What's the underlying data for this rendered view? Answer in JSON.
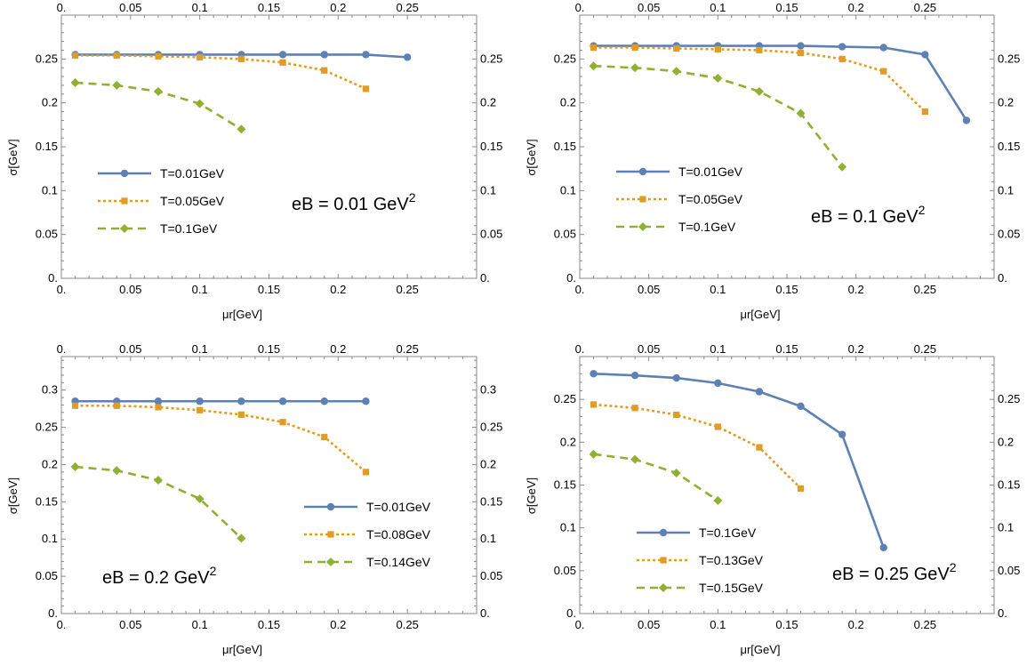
{
  "chart_data": [
    {
      "type": "line",
      "xlabel": "μr[GeV]",
      "ylabel": "σ[GeV]",
      "xlim": [
        0,
        0.3
      ],
      "ylim": [
        0,
        0.3
      ],
      "xticks": [
        "0.",
        "0.05",
        "0.1",
        "0.15",
        "0.2",
        "0.25"
      ],
      "yticks": [
        "0.",
        "0.05",
        "0.1",
        "0.15",
        "0.2",
        "0.25"
      ],
      "legend_position": "center-left",
      "annotation": {
        "text": "eB = 0.01 GeV",
        "sup": "2"
      },
      "series": [
        {
          "name": "T=0.01GeV",
          "color": "#5E81B5",
          "style": "solid",
          "marker": "circle",
          "x": [
            0.01,
            0.04,
            0.07,
            0.1,
            0.13,
            0.16,
            0.19,
            0.22,
            0.25
          ],
          "y": [
            0.255,
            0.255,
            0.255,
            0.255,
            0.255,
            0.255,
            0.255,
            0.255,
            0.252
          ]
        },
        {
          "name": "T=0.05GeV",
          "color": "#E19C24",
          "style": "dotted",
          "marker": "square",
          "x": [
            0.01,
            0.04,
            0.07,
            0.1,
            0.13,
            0.16,
            0.19,
            0.22
          ],
          "y": [
            0.254,
            0.254,
            0.253,
            0.252,
            0.25,
            0.246,
            0.237,
            0.216
          ]
        },
        {
          "name": "T=0.1GeV",
          "color": "#8FB032",
          "style": "dashed",
          "marker": "diamond",
          "x": [
            0.01,
            0.04,
            0.07,
            0.1,
            0.13
          ],
          "y": [
            0.223,
            0.22,
            0.213,
            0.199,
            0.17
          ]
        }
      ]
    },
    {
      "type": "line",
      "xlabel": "μr[GeV]",
      "ylabel": "σ[GeV]",
      "xlim": [
        0,
        0.3
      ],
      "ylim": [
        0,
        0.3
      ],
      "xticks": [
        "0.",
        "0.05",
        "0.1",
        "0.15",
        "0.2",
        "0.25"
      ],
      "yticks": [
        "0.",
        "0.05",
        "0.1",
        "0.15",
        "0.2",
        "0.25"
      ],
      "legend_position": "center-left",
      "annotation": {
        "text": "eB = 0.1 GeV",
        "sup": "2"
      },
      "series": [
        {
          "name": "T=0.01GeV",
          "color": "#5E81B5",
          "style": "solid",
          "marker": "circle",
          "x": [
            0.01,
            0.04,
            0.07,
            0.1,
            0.13,
            0.16,
            0.19,
            0.22,
            0.25,
            0.28
          ],
          "y": [
            0.265,
            0.265,
            0.265,
            0.265,
            0.265,
            0.265,
            0.264,
            0.263,
            0.255,
            0.18
          ]
        },
        {
          "name": "T=0.05GeV",
          "color": "#E19C24",
          "style": "dotted",
          "marker": "square",
          "x": [
            0.01,
            0.04,
            0.07,
            0.1,
            0.13,
            0.16,
            0.19,
            0.22,
            0.25
          ],
          "y": [
            0.263,
            0.263,
            0.262,
            0.261,
            0.26,
            0.257,
            0.25,
            0.236,
            0.19
          ]
        },
        {
          "name": "T=0.1GeV",
          "color": "#8FB032",
          "style": "dashed",
          "marker": "diamond",
          "x": [
            0.01,
            0.04,
            0.07,
            0.1,
            0.13,
            0.16,
            0.19
          ],
          "y": [
            0.242,
            0.24,
            0.236,
            0.228,
            0.213,
            0.188,
            0.127
          ]
        }
      ]
    },
    {
      "type": "line",
      "xlabel": "μr[GeV]",
      "ylabel": "σ[GeV]",
      "xlim": [
        0,
        0.3
      ],
      "ylim": [
        0,
        0.345
      ],
      "xticks": [
        "0.",
        "0.05",
        "0.1",
        "0.15",
        "0.2",
        "0.25"
      ],
      "yticks": [
        "0.",
        "0.05",
        "0.1",
        "0.15",
        "0.2",
        "0.25",
        "0.3"
      ],
      "legend_position": "center-right",
      "annotation": {
        "text": "eB = 0.2 GeV",
        "sup": "2"
      },
      "series": [
        {
          "name": "T=0.01GeV",
          "color": "#5E81B5",
          "style": "solid",
          "marker": "circle",
          "x": [
            0.01,
            0.04,
            0.07,
            0.1,
            0.13,
            0.16,
            0.19,
            0.22
          ],
          "y": [
            0.285,
            0.285,
            0.285,
            0.285,
            0.285,
            0.285,
            0.285,
            0.285
          ]
        },
        {
          "name": "T=0.08GeV",
          "color": "#E19C24",
          "style": "dotted",
          "marker": "square",
          "x": [
            0.01,
            0.04,
            0.07,
            0.1,
            0.13,
            0.16,
            0.19,
            0.22
          ],
          "y": [
            0.279,
            0.279,
            0.277,
            0.273,
            0.267,
            0.257,
            0.237,
            0.19
          ]
        },
        {
          "name": "T=0.14GeV",
          "color": "#8FB032",
          "style": "dashed",
          "marker": "diamond",
          "x": [
            0.01,
            0.04,
            0.07,
            0.1,
            0.13
          ],
          "y": [
            0.197,
            0.192,
            0.179,
            0.154,
            0.101
          ]
        }
      ]
    },
    {
      "type": "line",
      "xlabel": "μr[GeV]",
      "ylabel": "σ[GeV]",
      "xlim": [
        0,
        0.3
      ],
      "ylim": [
        0,
        0.3
      ],
      "xticks": [
        "0.",
        "0.05",
        "0.1",
        "0.15",
        "0.2",
        "0.25"
      ],
      "yticks": [
        "0.",
        "0.05",
        "0.1",
        "0.15",
        "0.2",
        "0.25"
      ],
      "legend_position": "bottom-left",
      "annotation": {
        "text": "eB = 0.25 GeV",
        "sup": "2"
      },
      "series": [
        {
          "name": "T=0.1GeV",
          "color": "#5E81B5",
          "style": "solid",
          "marker": "circle",
          "x": [
            0.01,
            0.04,
            0.07,
            0.1,
            0.13,
            0.16,
            0.19,
            0.22
          ],
          "y": [
            0.28,
            0.278,
            0.275,
            0.269,
            0.259,
            0.242,
            0.209,
            0.077
          ]
        },
        {
          "name": "T=0.13GeV",
          "color": "#E19C24",
          "style": "dotted",
          "marker": "square",
          "x": [
            0.01,
            0.04,
            0.07,
            0.1,
            0.13,
            0.16
          ],
          "y": [
            0.244,
            0.24,
            0.232,
            0.218,
            0.194,
            0.146
          ]
        },
        {
          "name": "T=0.15GeV",
          "color": "#8FB032",
          "style": "dashed",
          "marker": "diamond",
          "x": [
            0.01,
            0.04,
            0.07,
            0.1
          ],
          "y": [
            0.186,
            0.18,
            0.164,
            0.132
          ]
        }
      ]
    }
  ]
}
